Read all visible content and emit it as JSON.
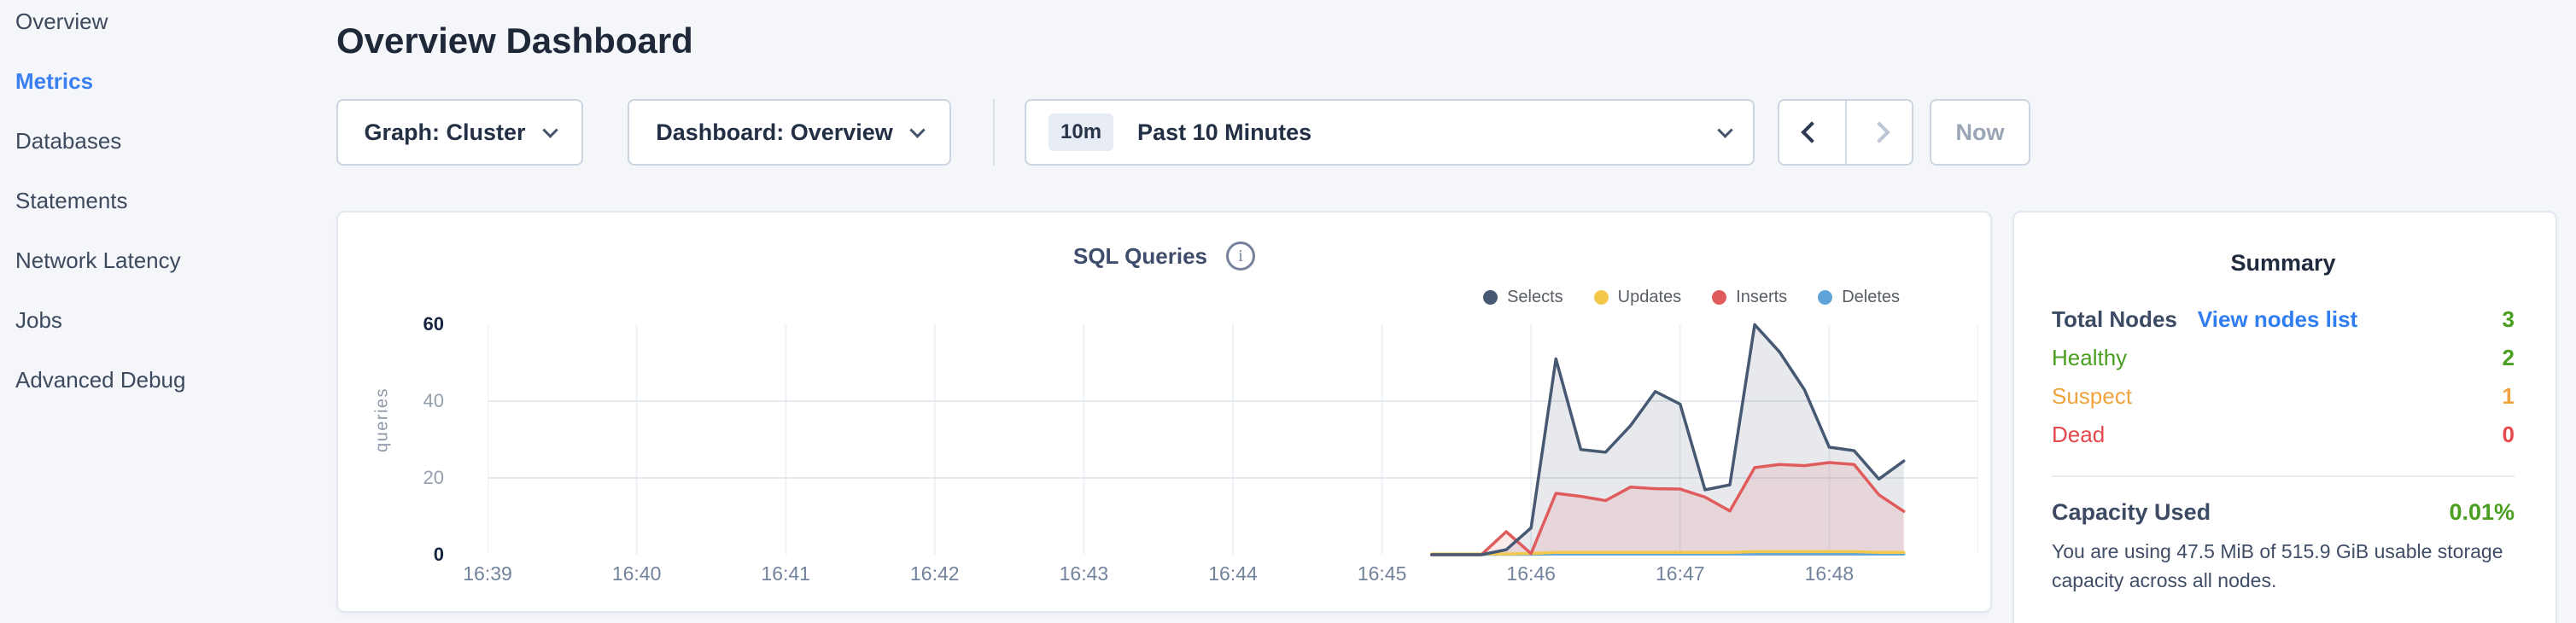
{
  "sidebar": {
    "items": [
      {
        "label": "Overview",
        "active": false
      },
      {
        "label": "Metrics",
        "active": true
      },
      {
        "label": "Databases",
        "active": false
      },
      {
        "label": "Statements",
        "active": false
      },
      {
        "label": "Network Latency",
        "active": false
      },
      {
        "label": "Jobs",
        "active": false
      },
      {
        "label": "Advanced Debug",
        "active": false
      }
    ]
  },
  "header": {
    "title": "Overview Dashboard"
  },
  "toolbar": {
    "graph_label": "Graph: Cluster",
    "dashboard_label": "Dashboard: Overview",
    "time_badge": "10m",
    "time_label": "Past 10 Minutes",
    "now_label": "Now"
  },
  "colors": {
    "accent_blue": "#3a7ff2",
    "link_blue": "#2f7df0",
    "healthy_green": "#4a9e20",
    "suspect_orange": "#f0a33c",
    "dead_red": "#e5484d"
  },
  "chart_data": {
    "type": "area",
    "title": "SQL Queries",
    "info_icon": "i",
    "ylabel": "queries",
    "y_ticks": [
      0,
      20,
      40,
      60
    ],
    "y_max": 60,
    "x_labels": [
      "16:39",
      "16:40",
      "16:41",
      "16:42",
      "16:43",
      "16:44",
      "16:45",
      "16:46",
      "16:47",
      "16:48"
    ],
    "x_axis_total_seconds": 600,
    "x_gridline_count": 11,
    "legend_position": "top-right",
    "grid": true,
    "series_x_start_seconds": 380,
    "series_x_step_seconds": 10,
    "x_times": [
      "16:45:20",
      "16:45:30",
      "16:45:40",
      "16:45:50",
      "16:46:00",
      "16:46:10",
      "16:46:20",
      "16:46:30",
      "16:46:40",
      "16:46:50",
      "16:47:00",
      "16:47:10",
      "16:47:20",
      "16:47:30",
      "16:47:40",
      "16:47:50",
      "16:48:00",
      "16:48:10",
      "16:48:20",
      "16:48:30"
    ],
    "series": [
      {
        "name": "Selects",
        "color": "#475872",
        "fill": true,
        "values": [
          0,
          0,
          0,
          1.3,
          7,
          51,
          27.4,
          26.7,
          33.6,
          42.5,
          39.2,
          16.9,
          18.2,
          59.9,
          52.8,
          43,
          28,
          27.1,
          19.7,
          24.4
        ]
      },
      {
        "name": "Updates",
        "color": "#f2c94c",
        "fill": false,
        "values": [
          0.2,
          0.2,
          0.2,
          0.2,
          0.3,
          0.6,
          0.6,
          0.6,
          0.6,
          0.6,
          0.6,
          0.6,
          0.6,
          0.8,
          0.8,
          0.8,
          0.8,
          0.8,
          0.6,
          0.6
        ]
      },
      {
        "name": "Inserts",
        "color": "#e05c5c",
        "fill": true,
        "values": [
          0,
          0,
          0,
          6,
          0.3,
          16,
          15.2,
          14.1,
          17.6,
          17.2,
          17.1,
          15,
          11.4,
          22.7,
          23.5,
          23.2,
          24,
          23.5,
          15.6,
          11.3
        ]
      },
      {
        "name": "Deletes",
        "color": "#5ea4d9",
        "fill": false,
        "values": [
          0.1,
          0.1,
          0.1,
          0.1,
          0.1,
          0.2,
          0.2,
          0.2,
          0.2,
          0.2,
          0.2,
          0.2,
          0.2,
          0.2,
          0.2,
          0.2,
          0.2,
          0.2,
          0.2,
          0.2
        ]
      }
    ]
  },
  "summary": {
    "title": "Summary",
    "rows": [
      {
        "label": "Total Nodes",
        "link": "View nodes list",
        "value": "3",
        "color": "green"
      },
      {
        "label": "Healthy",
        "value": "2",
        "color": "green"
      },
      {
        "label": "Suspect",
        "value": "1",
        "color": "orange"
      },
      {
        "label": "Dead",
        "value": "0",
        "color": "red"
      }
    ],
    "capacity": {
      "label": "Capacity Used",
      "value": "0.01%",
      "description": "You are using 47.5 MiB of 515.9 GiB usable storage capacity across all nodes."
    }
  }
}
